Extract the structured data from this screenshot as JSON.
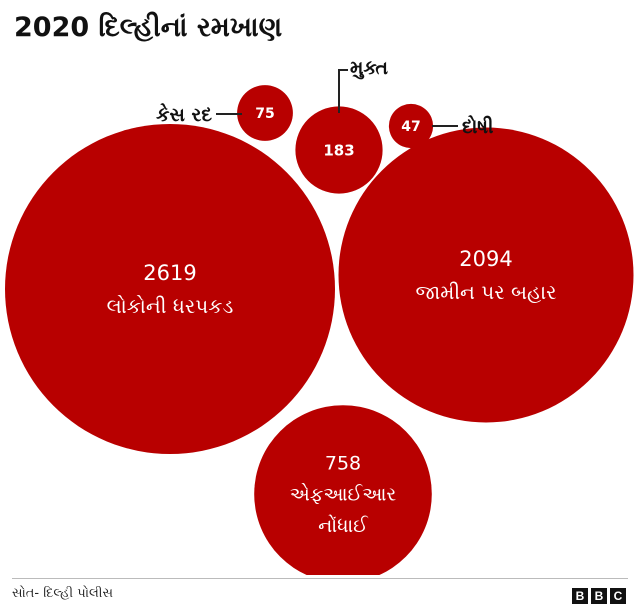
{
  "title": "2020 દિલ્હીનાં રમખાણ",
  "footer": {
    "source": "સોત- દિલ્હી પોલીસ",
    "logo_letters": [
      "B",
      "B",
      "C"
    ]
  },
  "colors": {
    "bubble": "#b80000",
    "text_on_bubble": "#ffffff"
  },
  "chart_data": {
    "type": "bubble",
    "title": "2020 દિલ્હીનાં રમખાણ",
    "items": [
      {
        "value": 2619,
        "label": "લોકોની ધરપકડ"
      },
      {
        "value": 2094,
        "label": "જામીન પર બહાર"
      },
      {
        "value": 758,
        "label": "એફઆઈઆર નોંધાઈ"
      },
      {
        "value": 183,
        "label": "મુક્ત"
      },
      {
        "value": 75,
        "label": "કેસ રદ"
      },
      {
        "value": 47,
        "label": "દોષી"
      }
    ]
  }
}
